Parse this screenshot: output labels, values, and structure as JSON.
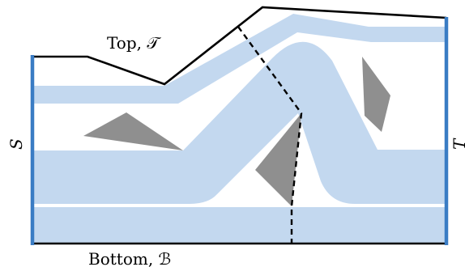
{
  "labels": {
    "top": "Top, 𝒯",
    "bottom": "Bottom, ℬ",
    "left": "S",
    "right": "T"
  },
  "colors": {
    "band": "#c3d8ef",
    "obstacle": "#8f8f8f",
    "boundary_side": "#3a7cc4",
    "boundary_top_bottom": "#000000",
    "cut": "#000000"
  }
}
